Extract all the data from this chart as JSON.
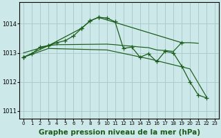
{
  "background_color": "#cce8e8",
  "grid_color": "#aacccc",
  "line_color": "#1a5c1a",
  "xlabel": "Graphe pression niveau de la mer (hPa)",
  "xlabel_fontsize": 7.5,
  "ylim": [
    1010.75,
    1014.75
  ],
  "yticks": [
    1011,
    1012,
    1013,
    1014
  ],
  "xlim": [
    -0.5,
    23.5
  ],
  "xtick_labels": [
    "0",
    "1",
    "2",
    "3",
    "4",
    "5",
    "6",
    "7",
    "8",
    "9",
    "10",
    "11",
    "12",
    "13",
    "14",
    "15",
    "16",
    "17",
    "18",
    "19",
    "20",
    "21",
    "22",
    "23"
  ],
  "series_main_x": [
    0,
    1,
    2,
    3,
    4,
    5,
    6,
    7,
    8,
    9,
    10,
    11,
    12,
    13,
    14,
    15,
    16,
    17,
    18,
    19,
    20,
    21,
    22
  ],
  "series_main_y": [
    1012.85,
    1012.97,
    1013.2,
    1013.25,
    1013.35,
    1013.42,
    1013.58,
    1013.85,
    1014.1,
    1014.22,
    1014.2,
    1014.07,
    1013.15,
    1013.2,
    1012.85,
    1012.97,
    1012.7,
    1013.05,
    1013.0,
    1012.55,
    1012.0,
    1011.55,
    1011.45
  ],
  "series_flat_x": [
    0,
    3,
    4,
    10,
    11,
    12,
    13,
    14,
    15,
    16,
    17,
    18,
    19,
    20,
    21
  ],
  "series_flat_y": [
    1013.0,
    1013.25,
    1013.28,
    1013.3,
    1013.28,
    1013.25,
    1013.23,
    1013.2,
    1013.18,
    1013.1,
    1013.08,
    1013.05,
    1013.35,
    1013.35,
    1013.33
  ],
  "series_diag_x": [
    0,
    3,
    10,
    15,
    20,
    22
  ],
  "series_diag_y": [
    1012.85,
    1013.15,
    1013.1,
    1012.8,
    1012.45,
    1011.48
  ],
  "series_sparse_x": [
    0,
    3,
    7,
    8,
    9,
    19
  ],
  "series_sparse_y": [
    1012.85,
    1013.25,
    1013.85,
    1014.1,
    1014.22,
    1013.35
  ]
}
